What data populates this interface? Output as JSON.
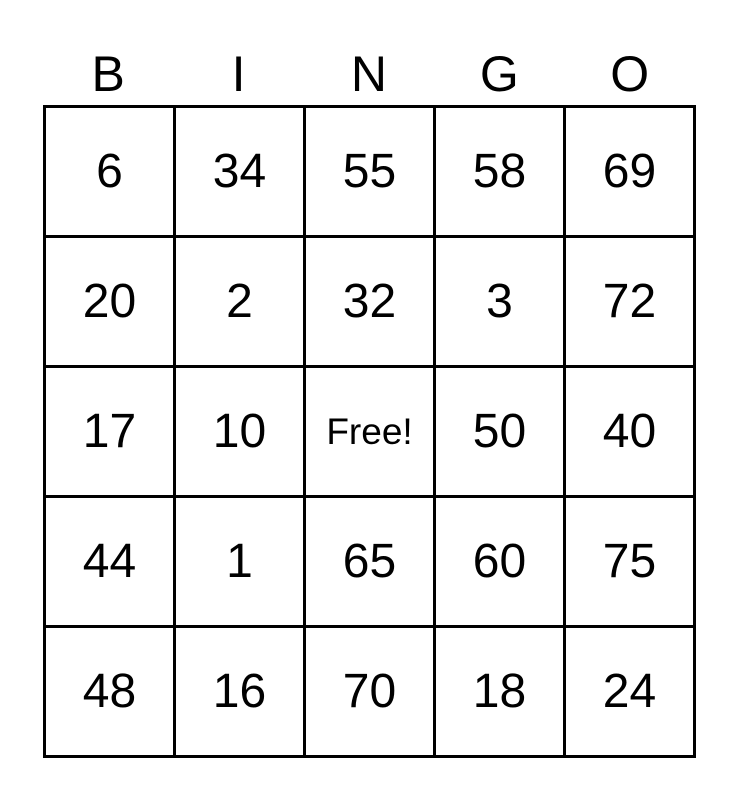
{
  "header": [
    "B",
    "I",
    "N",
    "G",
    "O"
  ],
  "rows": [
    [
      "6",
      "34",
      "55",
      "58",
      "69"
    ],
    [
      "20",
      "2",
      "32",
      "3",
      "72"
    ],
    [
      "17",
      "10",
      "Free!",
      "50",
      "40"
    ],
    [
      "44",
      "1",
      "65",
      "60",
      "75"
    ],
    [
      "48",
      "16",
      "70",
      "18",
      "24"
    ]
  ]
}
